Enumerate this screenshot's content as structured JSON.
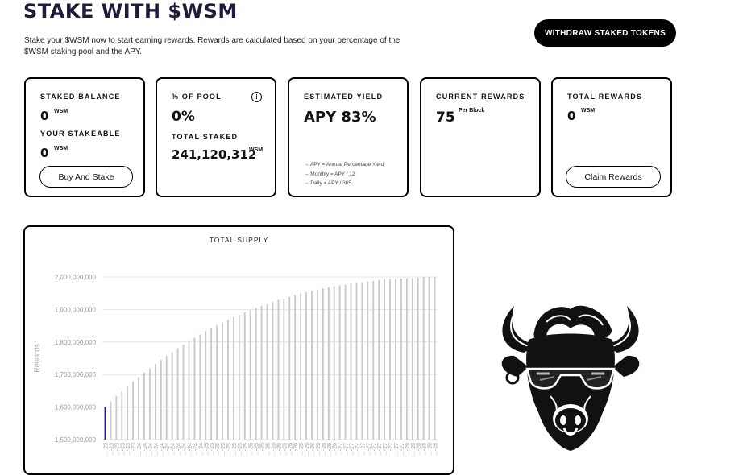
{
  "page": {
    "title": "STAKE WITH $WSM",
    "subtitle": "Stake your $WSM now to start earning rewards. Rewards are calculated based on your percentage of the $WSM staking pool and the APY.",
    "withdraw_label": "WITHDRAW STAKED TOKENS"
  },
  "cards": {
    "staked": {
      "label": "STAKED BALANCE",
      "value": "0",
      "unit": "WSM",
      "stakeable_label": "YOUR STAKEABLE",
      "stakeable_value": "0",
      "stakeable_unit": "WSM",
      "button": "Buy And Stake"
    },
    "pool": {
      "label": "% OF POOL",
      "value": "0%",
      "info_icon": "info-icon",
      "total_label": "TOTAL STAKED",
      "total_value": "241,120,312",
      "total_unit": "WSM"
    },
    "yield": {
      "label": "ESTIMATED YIELD",
      "value": "APY 83%",
      "notes": [
        "→ APY = Annual Percentage Yield",
        "→ Monthly = APY / 12",
        "→ Daily = APY / 365"
      ]
    },
    "current": {
      "label": "CURRENT REWARDS",
      "value": "75",
      "unit": "Per Block"
    },
    "total": {
      "label": "TOTAL REWARDS",
      "value": "0",
      "unit": "WSM",
      "button": "Claim Rewards"
    }
  },
  "chart_data": {
    "type": "bar",
    "title": "TOTAL SUPPLY",
    "ylabel": "Rewards",
    "xlabel": "",
    "ylim": [
      1500000000,
      2000000000
    ],
    "yticks": [
      1500000000,
      1600000000,
      1700000000,
      1800000000,
      1900000000,
      2000000000
    ],
    "ytick_labels": [
      "1,500,000,000",
      "1,600,000,000",
      "1,700,000,000",
      "1,800,000,000",
      "1,900,000,000",
      "2,000,000,000"
    ],
    "categories": [
      "...-23",
      "...-23",
      "...-23",
      "...-23",
      "...-23",
      "...-23",
      "...-24",
      "...-24",
      "...-24",
      "...-24",
      "...-24",
      "...-24",
      "...-24",
      "...-24",
      "...-24",
      "...-24",
      "...-24",
      "...-24",
      "...-25",
      "...-25",
      "...-25",
      "...-25",
      "...-25",
      "...-25",
      "...-25",
      "...-25",
      "...-25",
      "...-25",
      "...-25",
      "...-25",
      "...-26",
      "...-26",
      "...-26",
      "...-26",
      "...-26",
      "...-26",
      "...-26",
      "...-26",
      "...-26",
      "...-26",
      "...-26",
      "...-26",
      "...-27",
      "...-27",
      "...-27",
      "...-27",
      "...-27",
      "...-27",
      "...-27",
      "...-27",
      "...-27",
      "...-27",
      "...-27",
      "...-27",
      "...-28",
      "...-28",
      "...-28",
      "...-28",
      "...-28",
      "...-28"
    ],
    "values": [
      1600000000,
      1618000000,
      1633000000,
      1648000000,
      1663000000,
      1678000000,
      1692000000,
      1706000000,
      1719000000,
      1732000000,
      1745000000,
      1757000000,
      1769000000,
      1781000000,
      1792000000,
      1803000000,
      1813000000,
      1823000000,
      1833000000,
      1842000000,
      1851000000,
      1860000000,
      1868000000,
      1876000000,
      1884000000,
      1891000000,
      1898000000,
      1905000000,
      1911000000,
      1917000000,
      1923000000,
      1929000000,
      1934000000,
      1939000000,
      1944000000,
      1949000000,
      1953000000,
      1957000000,
      1961000000,
      1965000000,
      1968000000,
      1971000000,
      1974000000,
      1977000000,
      1980000000,
      1982000000,
      1984000000,
      1986000000,
      1988000000,
      1990000000,
      1992000000,
      1993000000,
      1994000000,
      1995000000,
      1996000000,
      1997000000,
      1998000000,
      1999000000,
      2000000000,
      2000000000
    ],
    "highlight_color": "#1a1aa6",
    "bar_color": "#c8c8c8",
    "grid": true
  },
  "mascot": {
    "icon": "bull-mascot-icon"
  }
}
